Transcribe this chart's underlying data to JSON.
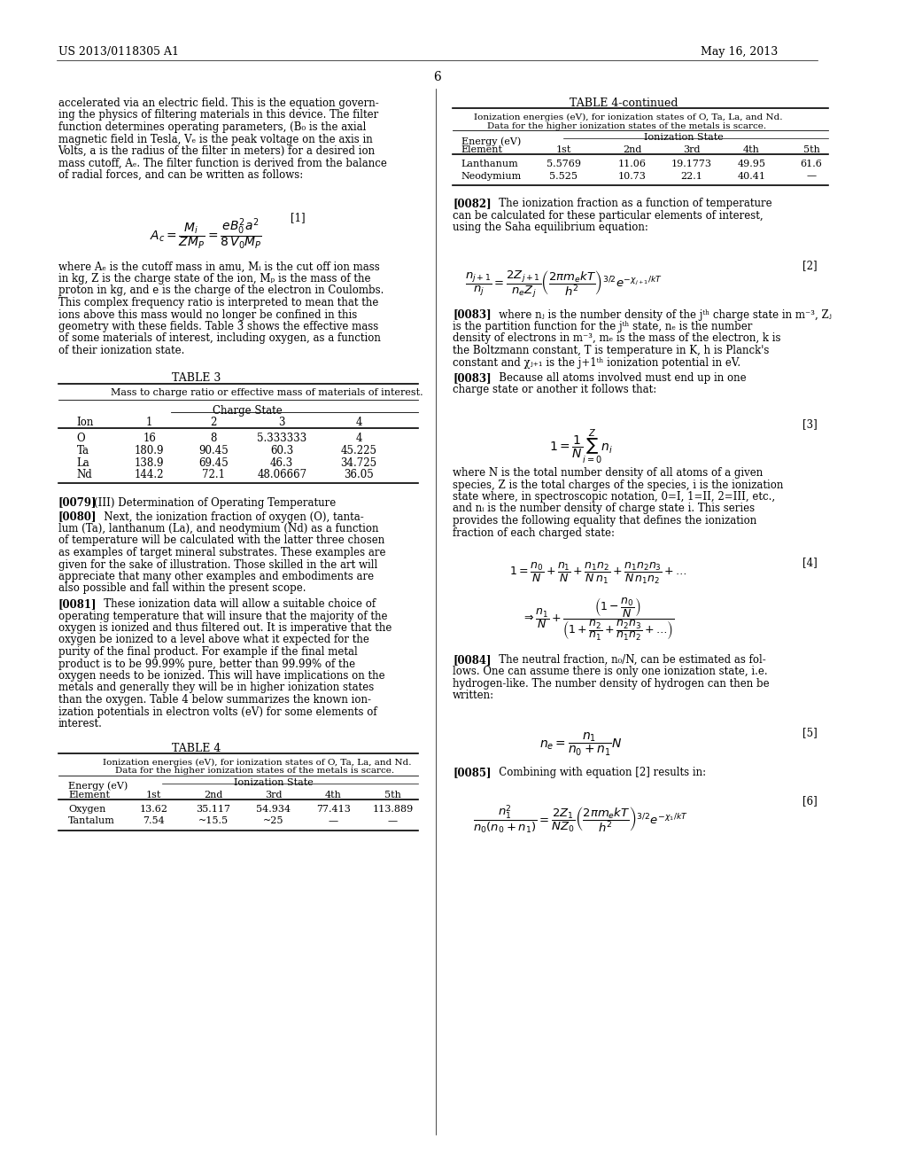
{
  "patent_number": "US 2013/0118305 A1",
  "date": "May 16, 2013",
  "page_number": "6",
  "background_color": "#ffffff",
  "text_color": "#000000",
  "font_size": 8.5
}
